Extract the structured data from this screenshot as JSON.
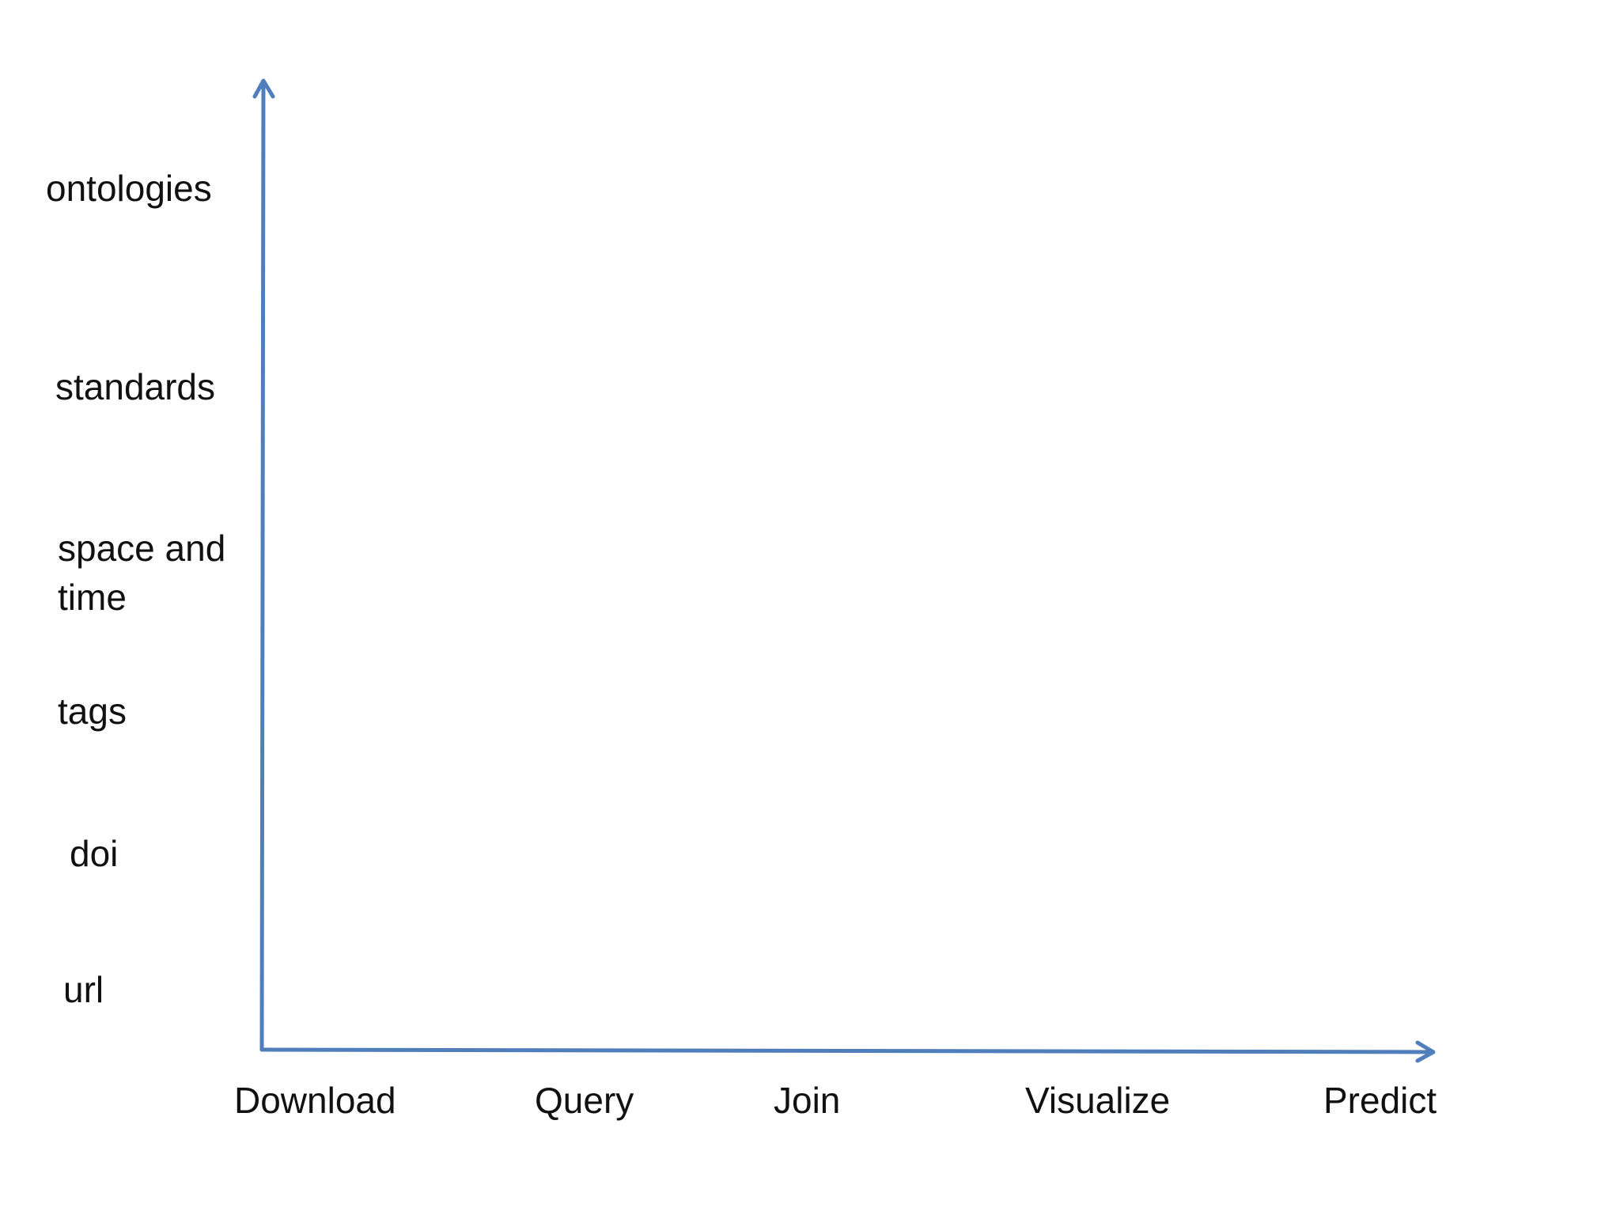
{
  "diagram": {
    "y_axis_levels": [
      "ontologies",
      "standards",
      "space and",
      "time",
      "tags",
      "doi",
      "url"
    ],
    "x_axis_stages": [
      "Download",
      "Query",
      "Join",
      "Visualize",
      "Predict"
    ],
    "axis_color": "#4f7ebb",
    "text_color": "#111111"
  }
}
